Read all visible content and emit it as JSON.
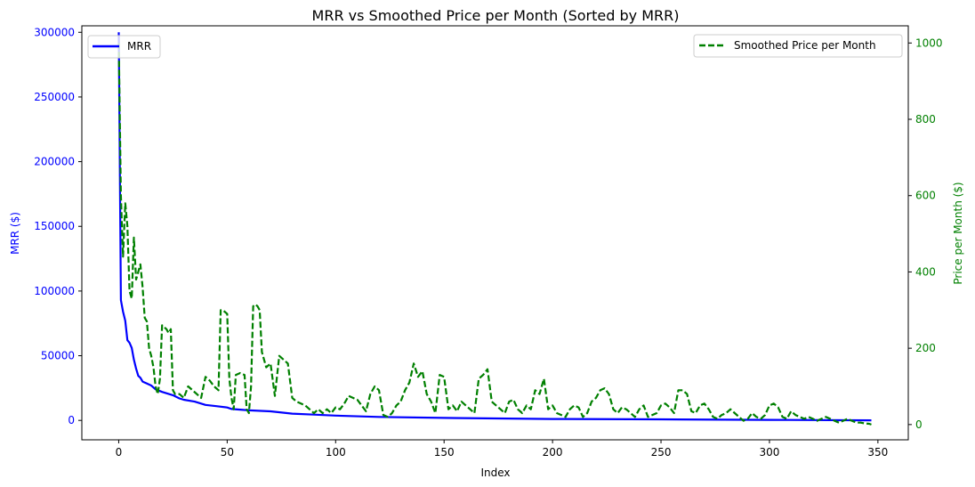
{
  "chart_data": {
    "type": "line",
    "title": "MRR vs Smoothed Price per Month (Sorted by MRR)",
    "xlabel": "Index",
    "ylabel_left": "MRR ($)",
    "ylabel_right": "Price per Month ($)",
    "xlim": [
      -17,
      364
    ],
    "ylim_left": [
      -15000,
      305000
    ],
    "ylim_right": [
      -40,
      1045
    ],
    "x_ticks": [
      0,
      50,
      100,
      150,
      200,
      250,
      300,
      350
    ],
    "y_left_ticks": [
      0,
      50000,
      100000,
      150000,
      200000,
      250000,
      300000
    ],
    "y_right_ticks": [
      0,
      200,
      400,
      600,
      800,
      1000
    ],
    "grid": false,
    "colors": {
      "mrr": "#0000ff",
      "price": "#008000"
    },
    "series": [
      {
        "name": "MRR",
        "axis": "left",
        "style": "solid",
        "points": [
          [
            0,
            300000
          ],
          [
            1,
            93000
          ],
          [
            2,
            84000
          ],
          [
            3,
            77000
          ],
          [
            4,
            62000
          ],
          [
            5,
            60000
          ],
          [
            6,
            56000
          ],
          [
            7,
            47000
          ],
          [
            8,
            40000
          ],
          [
            9,
            34500
          ],
          [
            10,
            33000
          ],
          [
            11,
            30000
          ],
          [
            13,
            28500
          ],
          [
            15,
            27000
          ],
          [
            17,
            24000
          ],
          [
            20,
            22000
          ],
          [
            25,
            19500
          ],
          [
            28,
            17000
          ],
          [
            30,
            16000
          ],
          [
            35,
            14500
          ],
          [
            40,
            12000
          ],
          [
            45,
            11000
          ],
          [
            50,
            10000
          ],
          [
            52,
            8800
          ],
          [
            60,
            7800
          ],
          [
            70,
            7000
          ],
          [
            80,
            5200
          ],
          [
            90,
            4500
          ],
          [
            100,
            3700
          ],
          [
            120,
            2700
          ],
          [
            150,
            1900
          ],
          [
            200,
            1100
          ],
          [
            250,
            800
          ],
          [
            300,
            400
          ],
          [
            347,
            100
          ]
        ]
      },
      {
        "name": "Smoothed Price per Month",
        "axis": "right",
        "style": "dashed",
        "points": [
          [
            0,
            1000
          ],
          [
            1,
            600
          ],
          [
            2,
            440
          ],
          [
            3,
            580
          ],
          [
            4,
            520
          ],
          [
            5,
            350
          ],
          [
            6,
            330
          ],
          [
            7,
            490
          ],
          [
            8,
            380
          ],
          [
            9,
            400
          ],
          [
            10,
            420
          ],
          [
            11,
            360
          ],
          [
            12,
            280
          ],
          [
            13,
            270
          ],
          [
            14,
            200
          ],
          [
            15,
            180
          ],
          [
            16,
            150
          ],
          [
            17,
            100
          ],
          [
            18,
            80
          ],
          [
            19,
            120
          ],
          [
            20,
            260
          ],
          [
            22,
            250
          ],
          [
            23,
            240
          ],
          [
            24,
            250
          ],
          [
            25,
            90
          ],
          [
            26,
            80
          ],
          [
            28,
            80
          ],
          [
            30,
            70
          ],
          [
            32,
            100
          ],
          [
            34,
            90
          ],
          [
            36,
            80
          ],
          [
            38,
            70
          ],
          [
            40,
            125
          ],
          [
            42,
            115
          ],
          [
            44,
            100
          ],
          [
            46,
            90
          ],
          [
            47,
            300
          ],
          [
            48,
            300
          ],
          [
            50,
            290
          ],
          [
            51,
            120
          ],
          [
            52,
            70
          ],
          [
            53,
            40
          ],
          [
            54,
            130
          ],
          [
            56,
            135
          ],
          [
            58,
            130
          ],
          [
            59,
            40
          ],
          [
            60,
            30
          ],
          [
            61,
            100
          ],
          [
            62,
            310
          ],
          [
            63,
            315
          ],
          [
            64,
            310
          ],
          [
            65,
            300
          ],
          [
            66,
            190
          ],
          [
            68,
            150
          ],
          [
            70,
            160
          ],
          [
            72,
            75
          ],
          [
            74,
            180
          ],
          [
            76,
            170
          ],
          [
            78,
            160
          ],
          [
            80,
            70
          ],
          [
            82,
            60
          ],
          [
            84,
            55
          ],
          [
            86,
            50
          ],
          [
            88,
            40
          ],
          [
            90,
            30
          ],
          [
            92,
            40
          ],
          [
            94,
            30
          ],
          [
            96,
            40
          ],
          [
            98,
            30
          ],
          [
            100,
            45
          ],
          [
            102,
            40
          ],
          [
            104,
            55
          ],
          [
            106,
            75
          ],
          [
            108,
            70
          ],
          [
            110,
            65
          ],
          [
            112,
            50
          ],
          [
            114,
            35
          ],
          [
            116,
            80
          ],
          [
            118,
            100
          ],
          [
            120,
            90
          ],
          [
            122,
            25
          ],
          [
            124,
            20
          ],
          [
            126,
            30
          ],
          [
            128,
            50
          ],
          [
            130,
            60
          ],
          [
            132,
            90
          ],
          [
            134,
            110
          ],
          [
            136,
            160
          ],
          [
            138,
            125
          ],
          [
            140,
            140
          ],
          [
            142,
            80
          ],
          [
            144,
            60
          ],
          [
            146,
            30
          ],
          [
            148,
            130
          ],
          [
            150,
            125
          ],
          [
            152,
            40
          ],
          [
            154,
            50
          ],
          [
            156,
            35
          ],
          [
            158,
            60
          ],
          [
            160,
            50
          ],
          [
            162,
            40
          ],
          [
            164,
            30
          ],
          [
            166,
            120
          ],
          [
            168,
            130
          ],
          [
            170,
            145
          ],
          [
            172,
            60
          ],
          [
            174,
            50
          ],
          [
            176,
            40
          ],
          [
            178,
            30
          ],
          [
            180,
            60
          ],
          [
            182,
            65
          ],
          [
            184,
            40
          ],
          [
            186,
            30
          ],
          [
            188,
            50
          ],
          [
            190,
            40
          ],
          [
            192,
            90
          ],
          [
            194,
            80
          ],
          [
            196,
            120
          ],
          [
            198,
            40
          ],
          [
            200,
            50
          ],
          [
            202,
            30
          ],
          [
            204,
            25
          ],
          [
            206,
            20
          ],
          [
            208,
            40
          ],
          [
            210,
            50
          ],
          [
            212,
            45
          ],
          [
            214,
            20
          ],
          [
            216,
            30
          ],
          [
            218,
            60
          ],
          [
            220,
            70
          ],
          [
            222,
            90
          ],
          [
            224,
            95
          ],
          [
            226,
            80
          ],
          [
            228,
            40
          ],
          [
            230,
            30
          ],
          [
            232,
            45
          ],
          [
            234,
            40
          ],
          [
            236,
            30
          ],
          [
            238,
            20
          ],
          [
            240,
            40
          ],
          [
            242,
            50
          ],
          [
            244,
            20
          ],
          [
            246,
            25
          ],
          [
            248,
            30
          ],
          [
            250,
            50
          ],
          [
            252,
            55
          ],
          [
            254,
            45
          ],
          [
            256,
            30
          ],
          [
            258,
            90
          ],
          [
            260,
            90
          ],
          [
            262,
            80
          ],
          [
            264,
            35
          ],
          [
            266,
            30
          ],
          [
            268,
            50
          ],
          [
            270,
            55
          ],
          [
            272,
            40
          ],
          [
            274,
            20
          ],
          [
            276,
            15
          ],
          [
            278,
            25
          ],
          [
            280,
            30
          ],
          [
            282,
            40
          ],
          [
            284,
            30
          ],
          [
            286,
            20
          ],
          [
            288,
            10
          ],
          [
            290,
            15
          ],
          [
            292,
            30
          ],
          [
            294,
            20
          ],
          [
            296,
            15
          ],
          [
            298,
            25
          ],
          [
            300,
            50
          ],
          [
            302,
            55
          ],
          [
            304,
            45
          ],
          [
            306,
            20
          ],
          [
            308,
            15
          ],
          [
            310,
            35
          ],
          [
            312,
            25
          ],
          [
            314,
            20
          ],
          [
            316,
            15
          ],
          [
            318,
            20
          ],
          [
            320,
            15
          ],
          [
            322,
            10
          ],
          [
            324,
            15
          ],
          [
            326,
            20
          ],
          [
            328,
            15
          ],
          [
            330,
            10
          ],
          [
            332,
            5
          ],
          [
            334,
            10
          ],
          [
            336,
            15
          ],
          [
            338,
            10
          ],
          [
            340,
            5
          ],
          [
            342,
            5
          ],
          [
            344,
            3
          ],
          [
            346,
            2
          ],
          [
            347,
            0
          ]
        ]
      }
    ],
    "legend": {
      "left": "top-left",
      "right": "top-right"
    }
  }
}
